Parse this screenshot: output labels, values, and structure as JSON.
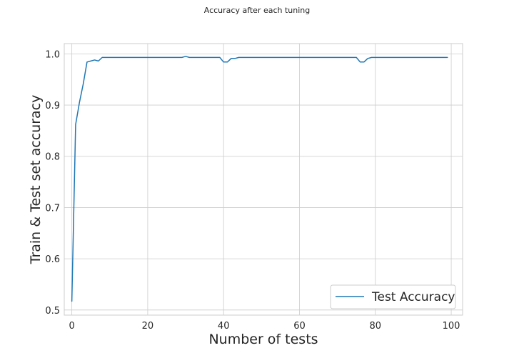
{
  "chart_data": {
    "type": "line",
    "title": "Accuracy after each tuning",
    "xlabel": "Number of tests",
    "ylabel": "Train & Test set accuracy",
    "xlim": [
      -2,
      103
    ],
    "ylim": [
      0.49,
      1.02
    ],
    "xticks": [
      0,
      20,
      40,
      60,
      80,
      100
    ],
    "xtick_labels": [
      "0",
      "20",
      "40",
      "60",
      "80",
      "100"
    ],
    "yticks": [
      0.5,
      0.6,
      0.7,
      0.8,
      0.9,
      1.0
    ],
    "ytick_labels": [
      "0.5",
      "0.6",
      "0.7",
      "0.8",
      "0.9",
      "1.0"
    ],
    "grid": true,
    "legend_position": "bottom-right",
    "series": [
      {
        "name": "Test Accuracy",
        "color": "#1f77b4",
        "x": [
          0,
          1,
          2,
          3,
          4,
          5,
          6,
          7,
          8,
          9,
          10,
          11,
          12,
          13,
          14,
          15,
          16,
          17,
          18,
          19,
          20,
          21,
          22,
          23,
          24,
          25,
          26,
          27,
          28,
          29,
          30,
          31,
          32,
          33,
          34,
          35,
          36,
          37,
          38,
          39,
          40,
          41,
          42,
          43,
          44,
          45,
          46,
          47,
          48,
          49,
          50,
          51,
          52,
          53,
          54,
          55,
          56,
          57,
          58,
          59,
          60,
          61,
          62,
          63,
          64,
          65,
          66,
          67,
          68,
          69,
          70,
          71,
          72,
          73,
          74,
          75,
          76,
          77,
          78,
          79,
          80,
          81,
          82,
          83,
          84,
          85,
          86,
          87,
          88,
          89,
          90,
          91,
          92,
          93,
          94,
          95,
          96,
          97,
          98,
          99
        ],
        "y": [
          0.517,
          0.862,
          0.905,
          0.941,
          0.984,
          0.986,
          0.988,
          0.986,
          0.993,
          0.993,
          0.993,
          0.993,
          0.993,
          0.993,
          0.993,
          0.993,
          0.993,
          0.993,
          0.993,
          0.993,
          0.993,
          0.993,
          0.993,
          0.993,
          0.993,
          0.993,
          0.993,
          0.993,
          0.993,
          0.993,
          0.995,
          0.993,
          0.993,
          0.993,
          0.993,
          0.993,
          0.993,
          0.993,
          0.993,
          0.993,
          0.984,
          0.984,
          0.991,
          0.991,
          0.993,
          0.993,
          0.993,
          0.993,
          0.993,
          0.993,
          0.993,
          0.993,
          0.993,
          0.993,
          0.993,
          0.993,
          0.993,
          0.993,
          0.993,
          0.993,
          0.993,
          0.993,
          0.993,
          0.993,
          0.993,
          0.993,
          0.993,
          0.993,
          0.993,
          0.993,
          0.993,
          0.993,
          0.993,
          0.993,
          0.993,
          0.993,
          0.984,
          0.984,
          0.991,
          0.993,
          0.993,
          0.993,
          0.993,
          0.993,
          0.993,
          0.993,
          0.993,
          0.993,
          0.993,
          0.993,
          0.993,
          0.993,
          0.993,
          0.993,
          0.993,
          0.993,
          0.993,
          0.993,
          0.993,
          0.993
        ]
      }
    ]
  },
  "colors": {
    "line": "#1f77b4",
    "grid": "#cccccc",
    "axes_edge": "#cccccc",
    "text": "#262626",
    "background": "#ffffff"
  }
}
